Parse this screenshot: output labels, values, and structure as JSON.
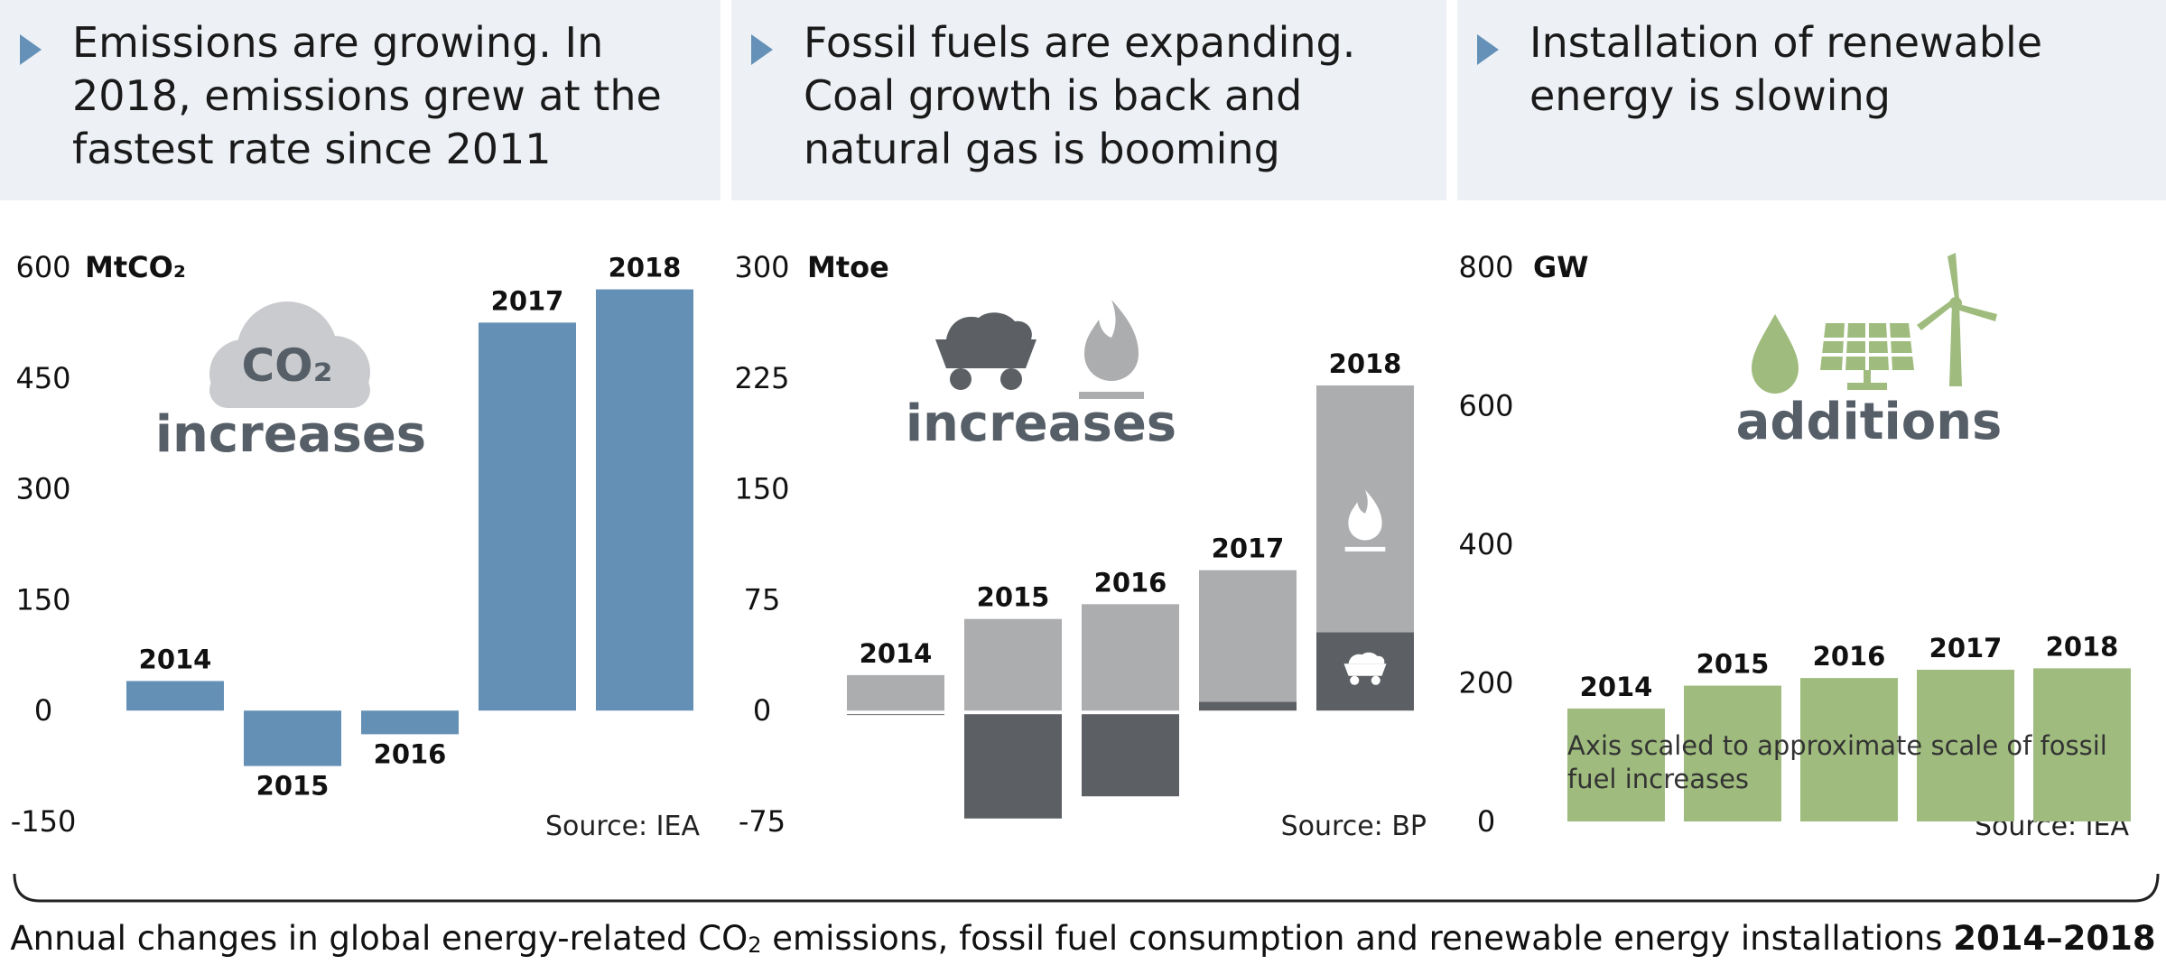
{
  "panels": [
    {
      "title": "Emissions are growing. In 2018, emissions grew at the fastest rate since 2011"
    },
    {
      "title": "Fossil fuels are expanding. Coal growth is back and natural gas is booming"
    },
    {
      "title": "Installation of renewable energy is slowing"
    }
  ],
  "chart_data": [
    {
      "type": "bar",
      "unit": "MtCO₂",
      "categories": [
        "2014",
        "2015",
        "2016",
        "2017",
        "2018"
      ],
      "values": [
        40,
        -75,
        -32,
        525,
        570
      ],
      "ylim": [
        -150,
        600
      ],
      "yticks": [
        "600",
        "450",
        "300",
        "150",
        "0",
        "-150"
      ],
      "source": "Source: IEA",
      "icon_text": "CO₂",
      "label": "increases",
      "colors": {
        "bar": "#6590b6",
        "icon": "#c9cbce"
      }
    },
    {
      "type": "bar",
      "stacked": true,
      "unit": "Mtoe",
      "categories": [
        "2014",
        "2015",
        "2016",
        "2017",
        "2018"
      ],
      "series": [
        {
          "values": [
            -3,
            -73,
            -58,
            6,
            53
          ]
        },
        {
          "values": [
            24,
            62,
            72,
            89,
            167
          ]
        }
      ],
      "ylim": [
        -75,
        300
      ],
      "yticks": [
        "300",
        "225",
        "150",
        "75",
        "0",
        "-75"
      ],
      "source": "Source: BP",
      "label": "increases",
      "colors": {
        "coal": "#5c6064",
        "gas": "#acadaf"
      }
    },
    {
      "type": "bar",
      "unit": "GW",
      "categories": [
        "2014",
        "2015",
        "2016",
        "2017",
        "2018"
      ],
      "values": [
        163,
        196,
        207,
        219,
        221
      ],
      "ylim": [
        0,
        800
      ],
      "yticks": [
        "800",
        "600",
        "400",
        "200",
        "0"
      ],
      "source": "Source: IEA",
      "label": "additions",
      "note": [
        "Axis scaled to approximate scale of fossil",
        "fuel increases"
      ],
      "colors": {
        "bar": "#9fbc7e"
      }
    }
  ],
  "caption": {
    "pre": "Annual changes in global energy-related CO",
    "sub": "2",
    "post": " emissions, fossil fuel consumption and renewable energy installations ",
    "bold": "2014–2018"
  }
}
